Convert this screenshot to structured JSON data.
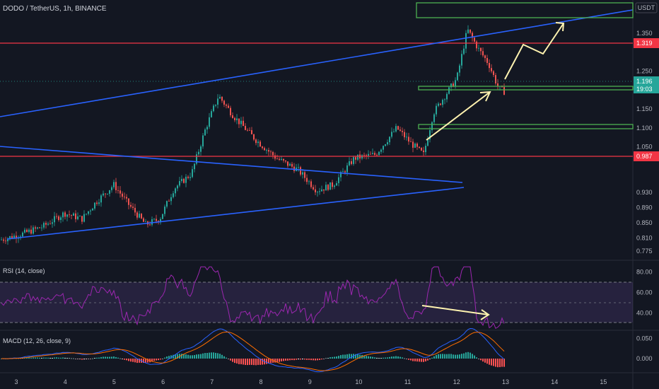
{
  "header": {
    "symbol_title": "DODO / TetherUS, 1h, BINANCE",
    "currency": "USDT"
  },
  "price_axis": {
    "ticks": [
      {
        "label": "1.350",
        "value": 1.35
      },
      {
        "label": "1.250",
        "value": 1.25
      },
      {
        "label": "1.150",
        "value": 1.15
      },
      {
        "label": "1.100",
        "value": 1.1
      },
      {
        "label": "1.050",
        "value": 1.05
      },
      {
        "label": "0.930",
        "value": 0.93
      },
      {
        "label": "0.890",
        "value": 0.89
      },
      {
        "label": "0.850",
        "value": 0.85
      },
      {
        "label": "0.810",
        "value": 0.81
      },
      {
        "label": "0.775",
        "value": 0.775
      }
    ],
    "levels": [
      {
        "label": "1.319",
        "value": 1.319,
        "color": "#f23645"
      },
      {
        "label": "0.987",
        "value": 0.987,
        "color": "#f23645"
      }
    ],
    "current_price": {
      "label": "1.196",
      "countdown": "19:03",
      "value": 1.196,
      "color": "#26a69a"
    }
  },
  "rsi": {
    "title": "RSI (14, close)",
    "ticks": [
      {
        "label": "80.00",
        "value": 80
      },
      {
        "label": "60.00",
        "value": 60
      },
      {
        "label": "40.00",
        "value": 40
      }
    ],
    "upper": 70,
    "middle": 50,
    "lower": 30,
    "line_color": "#9c27b0",
    "band_color": "#7e57c2"
  },
  "macd": {
    "title": "MACD (12, 26, close, 9)",
    "ticks": [
      {
        "label": "0.050",
        "value": 0.05
      },
      {
        "label": "0.000",
        "value": 0.0
      }
    ],
    "macd_color": "#2962ff",
    "signal_color": "#ff6d00"
  },
  "time_axis": {
    "ticks": [
      {
        "label": "3",
        "x": 3
      },
      {
        "label": "4",
        "x": 4
      },
      {
        "label": "5",
        "x": 5
      },
      {
        "label": "6",
        "x": 6
      },
      {
        "label": "7",
        "x": 7
      },
      {
        "label": "8",
        "x": 8
      },
      {
        "label": "9",
        "x": 9
      },
      {
        "label": "10",
        "x": 10
      },
      {
        "label": "11",
        "x": 11
      },
      {
        "label": "12",
        "x": 12
      },
      {
        "label": "13",
        "x": 13
      },
      {
        "label": "14",
        "x": 14
      },
      {
        "label": "15",
        "x": 15
      }
    ]
  },
  "colors": {
    "up": "#26a69a",
    "down": "#ef5350",
    "trendline": "#2962ff",
    "zone": "#4caf50",
    "arrow": "#fff3b0"
  }
}
